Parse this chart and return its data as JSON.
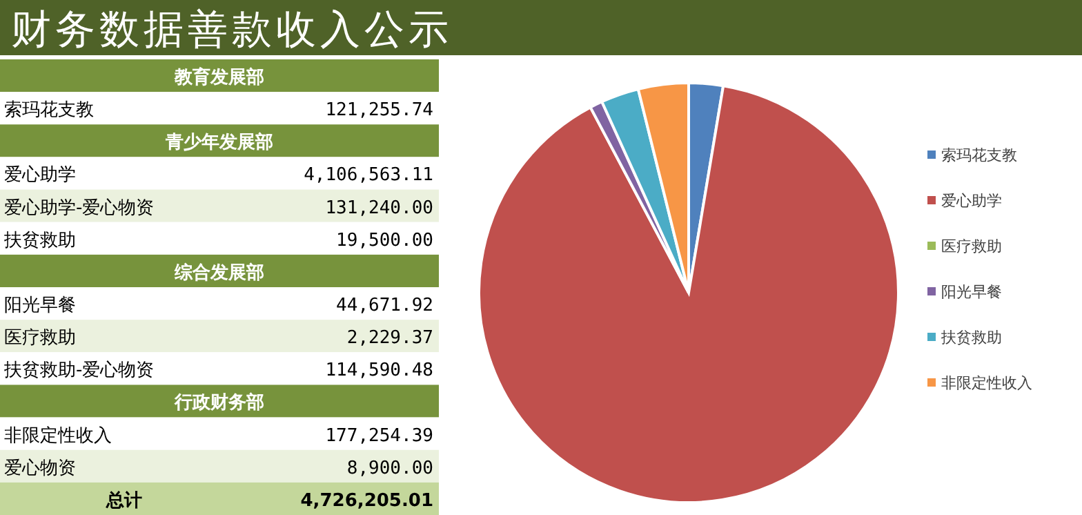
{
  "chart_data": [
    {
      "type": "other",
      "title": "财务数据善款收入公示",
      "categories": [
        "教育发展部",
        "索玛花支教",
        "青少年发展部",
        "爱心助学",
        "爱心助学-爱心物资",
        "扶贫救助",
        "综合发展部",
        "阳光早餐",
        "医疗救助",
        "扶贫救助-爱心物资",
        "行政财务部",
        "非限定性收入",
        "爱心物资",
        "总计"
      ],
      "value_labels": [
        null,
        "121,255.74",
        null,
        "4,106,563.11",
        "131,240.00",
        "19,500.00",
        null,
        "44,671.92",
        "2,229.37",
        "114,590.48",
        null,
        "177,254.39",
        "8,900.00",
        "4,726,205.01"
      ]
    },
    {
      "type": "pie",
      "categories": [
        "索玛花支教",
        "爱心助学",
        "医疗救助",
        "阳光早餐",
        "扶贫救助",
        "非限定性收入"
      ],
      "values": [
        2.64,
        89.6,
        null,
        0.97,
        2.92,
        3.87
      ],
      "colors": [
        "#4f81bd",
        "#c0504d",
        "#9bbb59",
        "#8064a2",
        "#4bacc6",
        "#f79646"
      ],
      "legend": "right"
    }
  ]
}
